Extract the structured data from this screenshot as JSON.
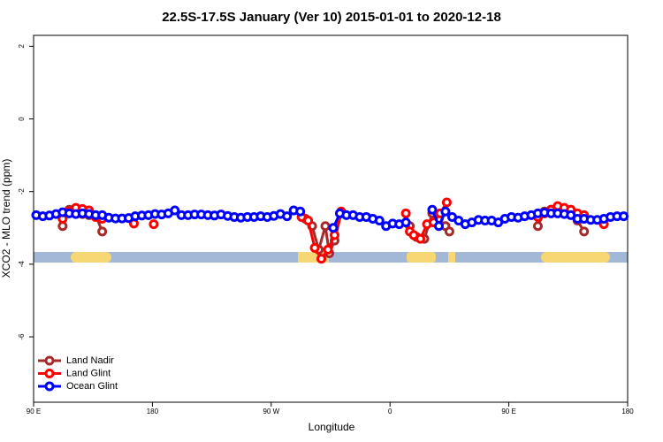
{
  "chart_data": {
    "type": "line",
    "title": "22.5S-17.5S January (Ver 10)   2015-01-01 to 2020-12-18",
    "x_label": "Longitude",
    "y_label": "XCO2 - MLO trend (ppm)",
    "xlim": [
      90,
      540
    ],
    "xticks": [
      {
        "value": 90,
        "label": "90 E"
      },
      180,
      {
        "value": 270,
        "label": "90 W"
      },
      {
        "value": 360,
        "label": "0"
      },
      {
        "value": 450,
        "label": "90 E"
      },
      {
        "value": 540,
        "label": "180"
      }
    ],
    "ylim": [
      -7.8,
      2.3
    ],
    "yticks": [
      2,
      0,
      -2,
      -4,
      -6
    ],
    "legend": "bottom-left",
    "series": [
      {
        "name": "Land Nadir",
        "color": "#a52a2a",
        "x": [
          112,
          117,
          122,
          127,
          132,
          137,
          142,
          200,
          296,
          301,
          306,
          311,
          314,
          318,
          323,
          350,
          375,
          380,
          386,
          392,
          397,
          402,
          405,
          440,
          472,
          477,
          482,
          487,
          492,
          497,
          502,
          507
        ],
        "values": [
          -2.95,
          -2.5,
          -2.6,
          -2.62,
          -2.65,
          -2.65,
          -3.1,
          null,
          -2.75,
          -2.95,
          -3.6,
          -2.95,
          -3.7,
          -3.35,
          -2.6,
          null,
          -2.95,
          -3.25,
          -3.3,
          -2.6,
          -2.75,
          -2.95,
          -3.1,
          null,
          -2.95,
          -2.55,
          -2.5,
          -2.55,
          -2.58,
          -2.6,
          -2.8,
          -3.1
        ]
      },
      {
        "name": "Land Glint",
        "color": "#ff0000",
        "x": [
          112,
          117,
          122,
          127,
          132,
          137,
          142,
          150,
          166,
          170,
          181,
          200,
          293,
          298,
          303,
          308,
          313,
          318,
          323,
          350,
          372,
          375,
          378,
          383,
          388,
          393,
          398,
          403,
          440,
          472,
          477,
          482,
          487,
          492,
          497,
          502,
          507,
          515,
          522
        ],
        "values": [
          -2.75,
          -2.55,
          -2.45,
          -2.48,
          -2.52,
          -2.7,
          -2.75,
          null,
          -2.88,
          null,
          -2.9,
          null,
          -2.7,
          -2.8,
          -3.55,
          -3.85,
          -3.6,
          -3.2,
          -2.55,
          null,
          -2.6,
          -3.1,
          -3.2,
          -3.3,
          -2.9,
          -2.85,
          -2.6,
          -2.3,
          null,
          -2.7,
          -2.6,
          -2.5,
          -2.4,
          -2.45,
          -2.5,
          -2.6,
          -2.65,
          null,
          -2.9
        ]
      },
      {
        "name": "Ocean Glint",
        "color": "#0000ff",
        "x": [
          92,
          97,
          102,
          107,
          112,
          117,
          122,
          127,
          132,
          137,
          142,
          147,
          152,
          157,
          162,
          167,
          172,
          177,
          182,
          187,
          192,
          197,
          202,
          207,
          212,
          217,
          222,
          227,
          232,
          237,
          242,
          247,
          252,
          257,
          262,
          267,
          272,
          277,
          282,
          287,
          292,
          297,
          302,
          307,
          312,
          317,
          322,
          327,
          332,
          337,
          342,
          347,
          352,
          357,
          362,
          367,
          372,
          377,
          382,
          387,
          392,
          397,
          402,
          407,
          412,
          417,
          422,
          427,
          432,
          437,
          442,
          447,
          452,
          457,
          462,
          467,
          472,
          477,
          482,
          487,
          492,
          497,
          502,
          507,
          512,
          517,
          522,
          527,
          532,
          537
        ],
        "values": [
          -2.65,
          -2.68,
          -2.66,
          -2.62,
          -2.57,
          -2.6,
          -2.62,
          -2.6,
          -2.62,
          -2.65,
          -2.65,
          -2.72,
          -2.74,
          -2.74,
          -2.73,
          -2.68,
          -2.66,
          -2.65,
          -2.62,
          -2.63,
          -2.6,
          -2.52,
          -2.65,
          -2.65,
          -2.63,
          -2.63,
          -2.65,
          -2.66,
          -2.63,
          -2.67,
          -2.7,
          -2.72,
          -2.7,
          -2.7,
          -2.68,
          -2.7,
          -2.67,
          -2.62,
          -2.68,
          -2.52,
          -2.55,
          null,
          null,
          null,
          null,
          -3.0,
          -2.6,
          -2.65,
          -2.65,
          -2.7,
          -2.7,
          -2.75,
          -2.8,
          -2.95,
          -2.88,
          -2.9,
          -2.85,
          null,
          null,
          null,
          -2.5,
          -2.95,
          -2.55,
          -2.7,
          -2.8,
          -2.9,
          -2.85,
          -2.78,
          -2.8,
          -2.8,
          -2.85,
          -2.75,
          -2.7,
          -2.72,
          -2.68,
          -2.65,
          -2.6,
          -2.58,
          -2.6,
          -2.6,
          -2.62,
          -2.65,
          -2.75,
          -2.75,
          -2.78,
          -2.78,
          -2.75,
          -2.7,
          -2.68,
          -2.68
        ]
      }
    ]
  }
}
